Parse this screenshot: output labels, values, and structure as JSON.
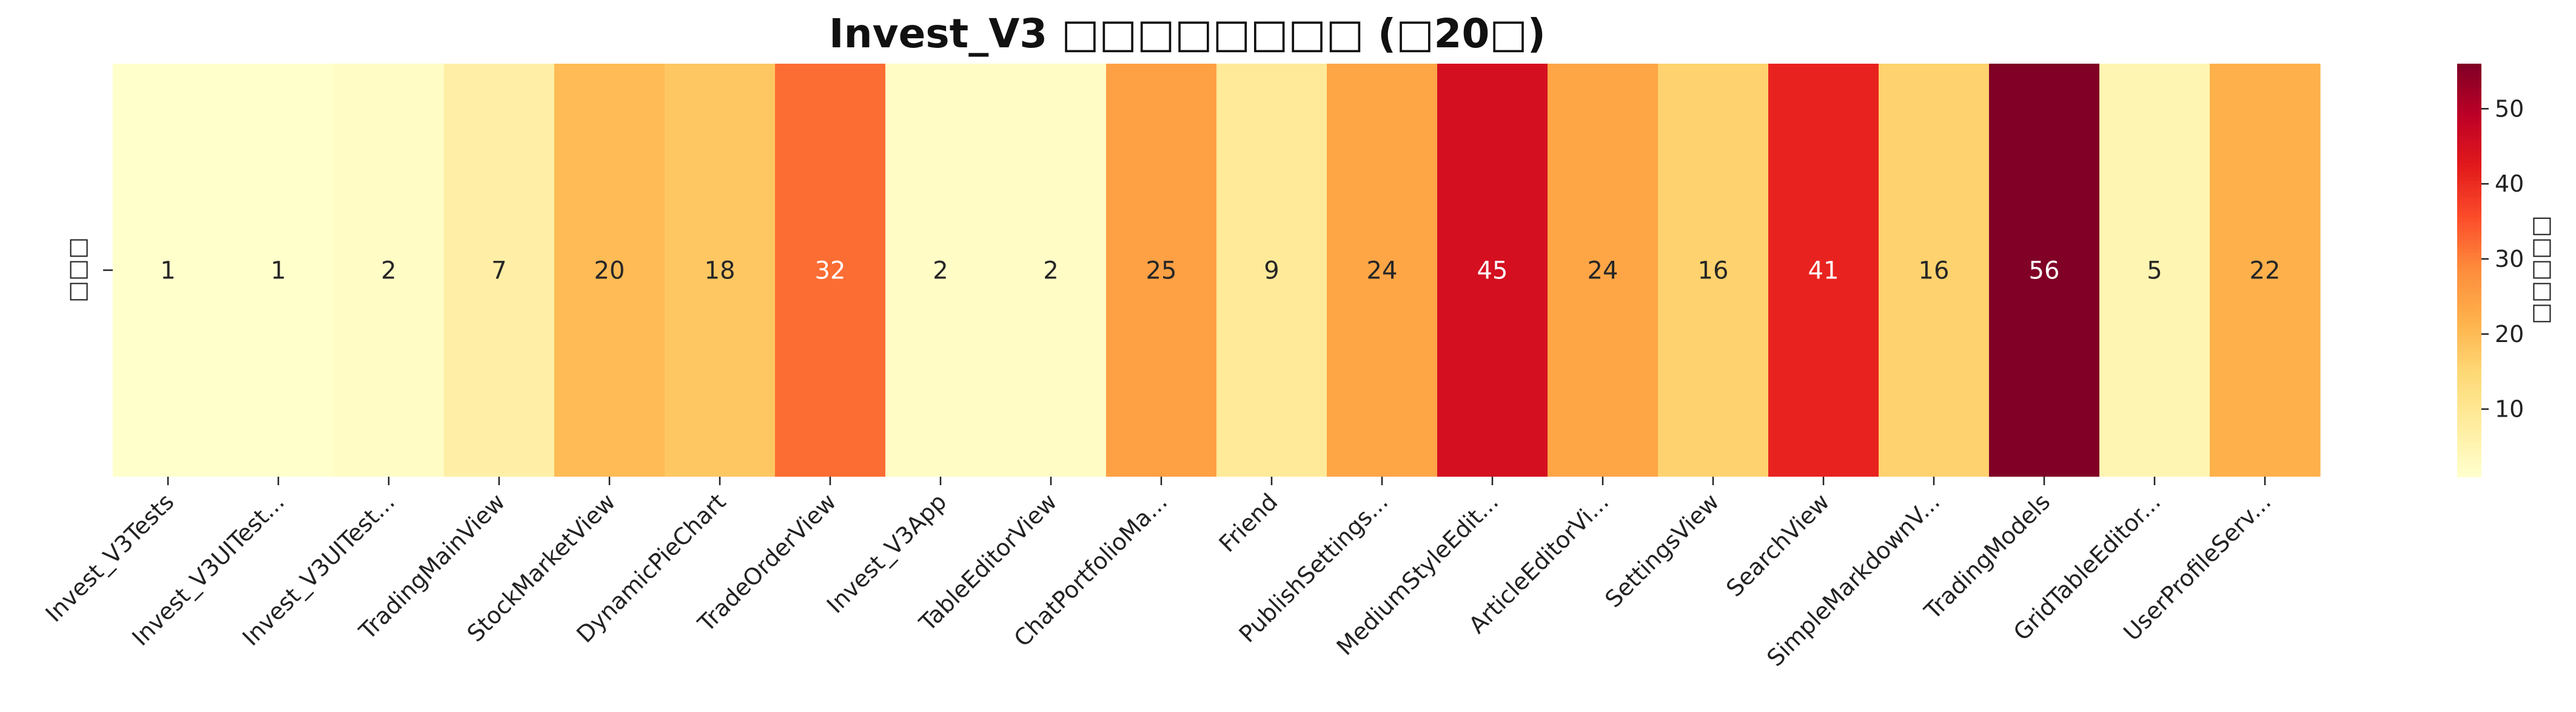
{
  "chart_data": {
    "type": "heatmap",
    "title": "Invest_V3 □□□□□□□□ (□20□)",
    "xlabel": "",
    "ylabel": "",
    "row_labels": [
      "□□□"
    ],
    "colorbar_label": "□□□□□",
    "colorbar_ticks": [
      10,
      20,
      30,
      40,
      50
    ],
    "value_range": [
      1,
      56
    ],
    "colormap": "YlOrRd",
    "categories": [
      "Invest_V3Tests",
      "Invest_V3UITest...",
      "Invest_V3UITest...",
      "TradingMainView",
      "StockMarketView",
      "DynamicPieChart",
      "TradeOrderView",
      "Invest_V3App",
      "TableEditorView",
      "ChatPortfolioMa...",
      "Friend",
      "PublishSettings...",
      "MediumStyleEdit...",
      "ArticleEditorVi...",
      "SettingsView",
      "SearchView",
      "SimpleMarkdownV...",
      "TradingModels",
      "GridTableEditor...",
      "UserProfileServ..."
    ],
    "values": [
      1,
      1,
      2,
      7,
      20,
      18,
      32,
      2,
      2,
      25,
      9,
      24,
      45,
      24,
      16,
      41,
      16,
      56,
      5,
      22
    ],
    "annotation_text_colors": {
      "dark": "#262626",
      "light": "#ffffff"
    },
    "colors": {
      "colormap_stops": [
        "#ffffcc",
        "#ffeda0",
        "#fed976",
        "#feb24c",
        "#fd8d3c",
        "#fc4e2a",
        "#e31a1c",
        "#bd0026",
        "#800026"
      ]
    }
  }
}
